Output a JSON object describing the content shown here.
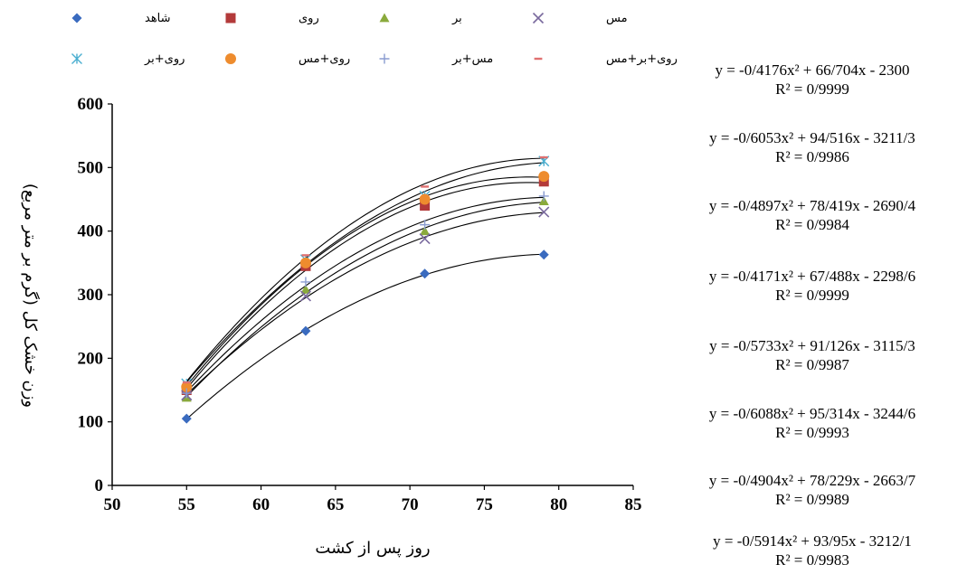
{
  "chart_data": {
    "type": "scatter",
    "title": "",
    "xlabel": "روز پس از کشت",
    "ylabel": "وزن خشک کل (گرم بر متر مربع)",
    "xlim": [
      50,
      85
    ],
    "ylim": [
      0,
      600
    ],
    "x_ticks": [
      "50",
      "55",
      "60",
      "65",
      "70",
      "75",
      "80",
      "85"
    ],
    "y_ticks": [
      "0",
      "100",
      "200",
      "300",
      "400",
      "500",
      "600"
    ],
    "x": [
      55,
      63,
      71,
      79
    ],
    "grid": false,
    "legend_position": "top",
    "series": [
      {
        "name": "شاهد",
        "marker": "diamond",
        "color": "#3a6bbf",
        "values": [
          105,
          243,
          333,
          363
        ]
      },
      {
        "name": "روی",
        "marker": "square",
        "color": "#b33a3a",
        "values": [
          150,
          345,
          440,
          478
        ]
      },
      {
        "name": "بر",
        "marker": "triangle",
        "color": "#8aaa3c",
        "values": [
          138,
          308,
          400,
          447
        ]
      },
      {
        "name": "مس",
        "marker": "x",
        "color": "#7a6a9e",
        "values": [
          142,
          298,
          388,
          430
        ]
      },
      {
        "name": "روی+بر",
        "marker": "asterisk",
        "color": "#4aaed0",
        "values": [
          160,
          355,
          455,
          510
        ]
      },
      {
        "name": "روی+مس",
        "marker": "circle",
        "color": "#ee8c2e",
        "values": [
          155,
          350,
          450,
          486
        ]
      },
      {
        "name": "مس+بر",
        "marker": "plus",
        "color": "#8a9cd0",
        "values": [
          145,
          320,
          410,
          455
        ]
      },
      {
        "name": "روی+بر+مس",
        "marker": "dash",
        "color": "#e07070",
        "values": [
          162,
          362,
          470,
          516
        ]
      }
    ],
    "equations": [
      {
        "y": "y = -0/4176x² + 66/704x - 2300",
        "r2": "R² = 0/9999"
      },
      {
        "y": "y = -0/6053x² + 94/516x - 3211/3",
        "r2": "R² = 0/9986"
      },
      {
        "y": "y = -0/4897x² + 78/419x - 2690/4",
        "r2": "R² = 0/9984"
      },
      {
        "y": "y = -0/4171x² + 67/488x - 2298/6",
        "r2": "R² = 0/9999"
      },
      {
        "y": "y = -0/5733x² + 91/126x - 3115/3",
        "r2": "R² = 0/9987"
      },
      {
        "y": "y = -0/6088x² + 95/314x - 3244/6",
        "r2": "R² = 0/9993"
      },
      {
        "y": "y = -0/4904x² + 78/229x - 2663/7",
        "r2": "R² = 0/9989"
      },
      {
        "y": "y = -0/5914x² + 93/95x - 3212/1",
        "r2": "R² = 0/9983"
      }
    ]
  }
}
